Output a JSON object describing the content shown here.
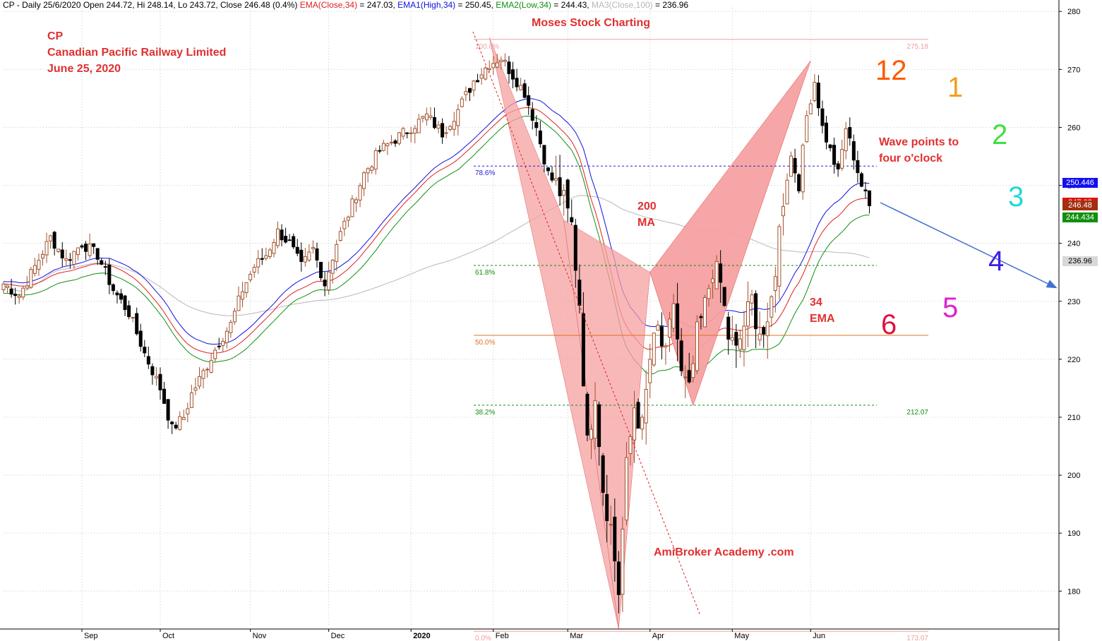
{
  "header": {
    "title": "CP - Daily 25/6/2020 Open 244.72, Hi 248.14, Lo 243.72, Close 246.48 (0.4%)",
    "ema_label": "EMA(Close,34)",
    "ema_value": " = 247.03, ",
    "ema1_label": "EMA1(High,34)",
    "ema1_value": " = 250.45, ",
    "ema2_label": "EMA2(Low,34)",
    "ema2_value": " = 244.43, ",
    "ma3_label": "MA3(Close,100)",
    "ma3_value": " = 236.96"
  },
  "annotations": {
    "ticker": "CP",
    "company": "Canadian Pacific Railway Limited",
    "date": "June 25, 2020",
    "watermark_top": "Moses Stock Charting",
    "watermark_bottom": "AmiBroker Academy .com",
    "ma200": "200\nMA",
    "ema34": "34\nEMA",
    "wave_note": "Wave points to\nfour o'clock"
  },
  "clock_numbers": [
    {
      "text": "12",
      "color": "#ff5a00"
    },
    {
      "text": "1",
      "color": "#f0a020"
    },
    {
      "text": "2",
      "color": "#3fe03f"
    },
    {
      "text": "3",
      "color": "#20d8d8"
    },
    {
      "text": "4",
      "color": "#4020e0"
    },
    {
      "text": "5",
      "color": "#e020d0"
    },
    {
      "text": "6",
      "color": "#e01040"
    }
  ],
  "price_tags": [
    {
      "text": "250.446",
      "bg": "#1010f0",
      "fg": "#ffffff",
      "price": 250.446
    },
    {
      "text": "247.03",
      "bg": "#e01010",
      "fg": "#ffffff",
      "price": 247.03
    },
    {
      "text": "246.48",
      "bg": "#a03010",
      "fg": "#ffffff",
      "price": 246.48
    },
    {
      "text": "244.434",
      "bg": "#109010",
      "fg": "#ffffff",
      "price": 244.434
    },
    {
      "text": "236.96",
      "bg": "#d8d8d8",
      "fg": "#000000",
      "price": 236.96
    }
  ],
  "colors": {
    "ema_close": "#e02020",
    "ema_high": "#1010e0",
    "ema_low": "#109010",
    "ma100": "#b8b8b8",
    "up_candle": "#a0522d",
    "down_candle": "#000000",
    "pattern_fill": "#f6a0a0",
    "grid": "#c8c8c8"
  },
  "chart_data": {
    "type": "candlestick",
    "symbol": "CP",
    "period": "Daily",
    "ylim": [
      172,
      281
    ],
    "y_ticks": [
      180,
      190,
      200,
      210,
      220,
      230,
      240,
      250,
      260,
      270,
      280
    ],
    "x_labels": [
      {
        "label": "Sep",
        "index": 20
      },
      {
        "label": "Oct",
        "index": 40
      },
      {
        "label": "Nov",
        "index": 63
      },
      {
        "label": "Dec",
        "index": 83
      },
      {
        "label": "2020",
        "index": 104
      },
      {
        "label": "Feb",
        "index": 125
      },
      {
        "label": "Mar",
        "index": 144
      },
      {
        "label": "Apr",
        "index": 165
      },
      {
        "label": "May",
        "index": 186
      },
      {
        "label": "Jun",
        "index": 206
      }
    ],
    "bars": 222,
    "close_anchors": [
      [
        0,
        233
      ],
      [
        4,
        231
      ],
      [
        8,
        236
      ],
      [
        12,
        241
      ],
      [
        16,
        237
      ],
      [
        20,
        240
      ],
      [
        24,
        238
      ],
      [
        28,
        232
      ],
      [
        32,
        228
      ],
      [
        36,
        221
      ],
      [
        40,
        215
      ],
      [
        43,
        208
      ],
      [
        46,
        210
      ],
      [
        48,
        214
      ],
      [
        52,
        219
      ],
      [
        55,
        223
      ],
      [
        58,
        226
      ],
      [
        61,
        232
      ],
      [
        64,
        236
      ],
      [
        67,
        238
      ],
      [
        70,
        242
      ],
      [
        73,
        240
      ],
      [
        76,
        236
      ],
      [
        79,
        239
      ],
      [
        82,
        233
      ],
      [
        85,
        240
      ],
      [
        88,
        245
      ],
      [
        92,
        252
      ],
      [
        96,
        256
      ],
      [
        100,
        258
      ],
      [
        104,
        260
      ],
      [
        108,
        262
      ],
      [
        112,
        259
      ],
      [
        116,
        263
      ],
      [
        120,
        268
      ],
      [
        124,
        271
      ],
      [
        127,
        272
      ],
      [
        130,
        269
      ],
      [
        133,
        266
      ],
      [
        136,
        260
      ],
      [
        139,
        252
      ],
      [
        142,
        249
      ],
      [
        145,
        243
      ],
      [
        147,
        230
      ],
      [
        149,
        205
      ],
      [
        151,
        215
      ],
      [
        153,
        198
      ],
      [
        155,
        191
      ],
      [
        157,
        180
      ],
      [
        159,
        201
      ],
      [
        161,
        212
      ],
      [
        163,
        208
      ],
      [
        165,
        220
      ],
      [
        167,
        225
      ],
      [
        169,
        220
      ],
      [
        171,
        230
      ],
      [
        173,
        217
      ],
      [
        175,
        214
      ],
      [
        177,
        224
      ],
      [
        179,
        229
      ],
      [
        181,
        236
      ],
      [
        183,
        233
      ],
      [
        185,
        224
      ],
      [
        187,
        221
      ],
      [
        189,
        226
      ],
      [
        191,
        230
      ],
      [
        193,
        225
      ],
      [
        195,
        224
      ],
      [
        197,
        236
      ],
      [
        199,
        248
      ],
      [
        201,
        255
      ],
      [
        203,
        250
      ],
      [
        205,
        262
      ],
      [
        207,
        268
      ],
      [
        209,
        260
      ],
      [
        211,
        256
      ],
      [
        213,
        252
      ],
      [
        215,
        260
      ],
      [
        217,
        255
      ],
      [
        219,
        250
      ],
      [
        221,
        246.48
      ]
    ],
    "indicators": [
      {
        "name": "EMA(Close,34)",
        "last": 247.03
      },
      {
        "name": "EMA1(High,34)",
        "last": 250.45
      },
      {
        "name": "EMA2(Low,34)",
        "last": 244.43
      },
      {
        "name": "MA3(Close,100)",
        "last": 236.96
      }
    ],
    "fibonacci": {
      "high": 275.18,
      "low": 173.07,
      "levels": [
        {
          "label": "100.0%",
          "price": 275.18,
          "color": "#f0a0a0"
        },
        {
          "label": "78.6%",
          "price": 253.33,
          "color": "#2020d0"
        },
        {
          "label": "61.8%",
          "price": 236.18,
          "color": "#109010"
        },
        {
          "label": "50.0%",
          "price": 224.13,
          "color": "#e07020"
        },
        {
          "label": "38.2%",
          "price": 212.07,
          "color": "#109010"
        },
        {
          "label": "0.0%",
          "price": 173.07,
          "color": "#f0a0a0"
        }
      ],
      "right_labels": [
        {
          "text": "275.18",
          "price": 275.18
        },
        {
          "text": "212.07",
          "price": 212.07
        },
        {
          "text": "173.07",
          "price": 173.07
        }
      ]
    },
    "pattern": {
      "triangle1": [
        [
          124,
          275.5
        ],
        [
          157,
          173.5
        ],
        [
          143,
          244
        ]
      ],
      "triangle2": [
        [
          143,
          244
        ],
        [
          165,
          235
        ],
        [
          157,
          173.5
        ]
      ],
      "triangle3": [
        [
          165,
          235
        ],
        [
          176,
          212
        ],
        [
          206,
          271.5
        ]
      ],
      "triangle4": [
        [
          165,
          235
        ],
        [
          206,
          271.5
        ],
        [
          176,
          212
        ]
      ]
    }
  }
}
